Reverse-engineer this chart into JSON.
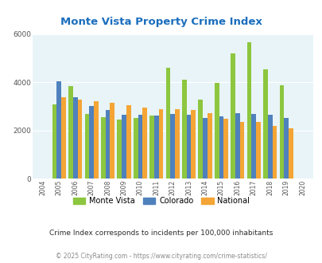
{
  "title": "Monte Vista Property Crime Index",
  "title_color": "#1a6ebd",
  "years": [
    2004,
    2005,
    2006,
    2007,
    2008,
    2009,
    2010,
    2011,
    2012,
    2013,
    2014,
    2015,
    2016,
    2017,
    2018,
    2019,
    2020
  ],
  "monte_vista": [
    0,
    3100,
    3850,
    2700,
    2550,
    2450,
    2520,
    2620,
    4600,
    4100,
    3270,
    3970,
    5200,
    5650,
    4550,
    3870,
    0
  ],
  "colorado": [
    0,
    4050,
    3380,
    3010,
    2850,
    2650,
    2650,
    2620,
    2680,
    2660,
    2540,
    2580,
    2720,
    2680,
    2650,
    2540,
    0
  ],
  "national": [
    0,
    3370,
    3290,
    3230,
    3140,
    3050,
    2960,
    2900,
    2890,
    2840,
    2720,
    2490,
    2360,
    2360,
    2200,
    2110,
    0
  ],
  "bar_colors": {
    "monte_vista": "#8dc63f",
    "colorado": "#4f81bd",
    "national": "#f4a535"
  },
  "ylim": [
    0,
    6000
  ],
  "yticks": [
    0,
    2000,
    4000,
    6000
  ],
  "plot_bg_color": "#e8f4f8",
  "legend_labels": [
    "Monte Vista",
    "Colorado",
    "National"
  ],
  "subtitle": "Crime Index corresponds to incidents per 100,000 inhabitants",
  "footer": "© 2025 CityRating.com - https://www.cityrating.com/crime-statistics/",
  "subtitle_color": "#2c2c2c",
  "footer_color": "#8a8a8a"
}
